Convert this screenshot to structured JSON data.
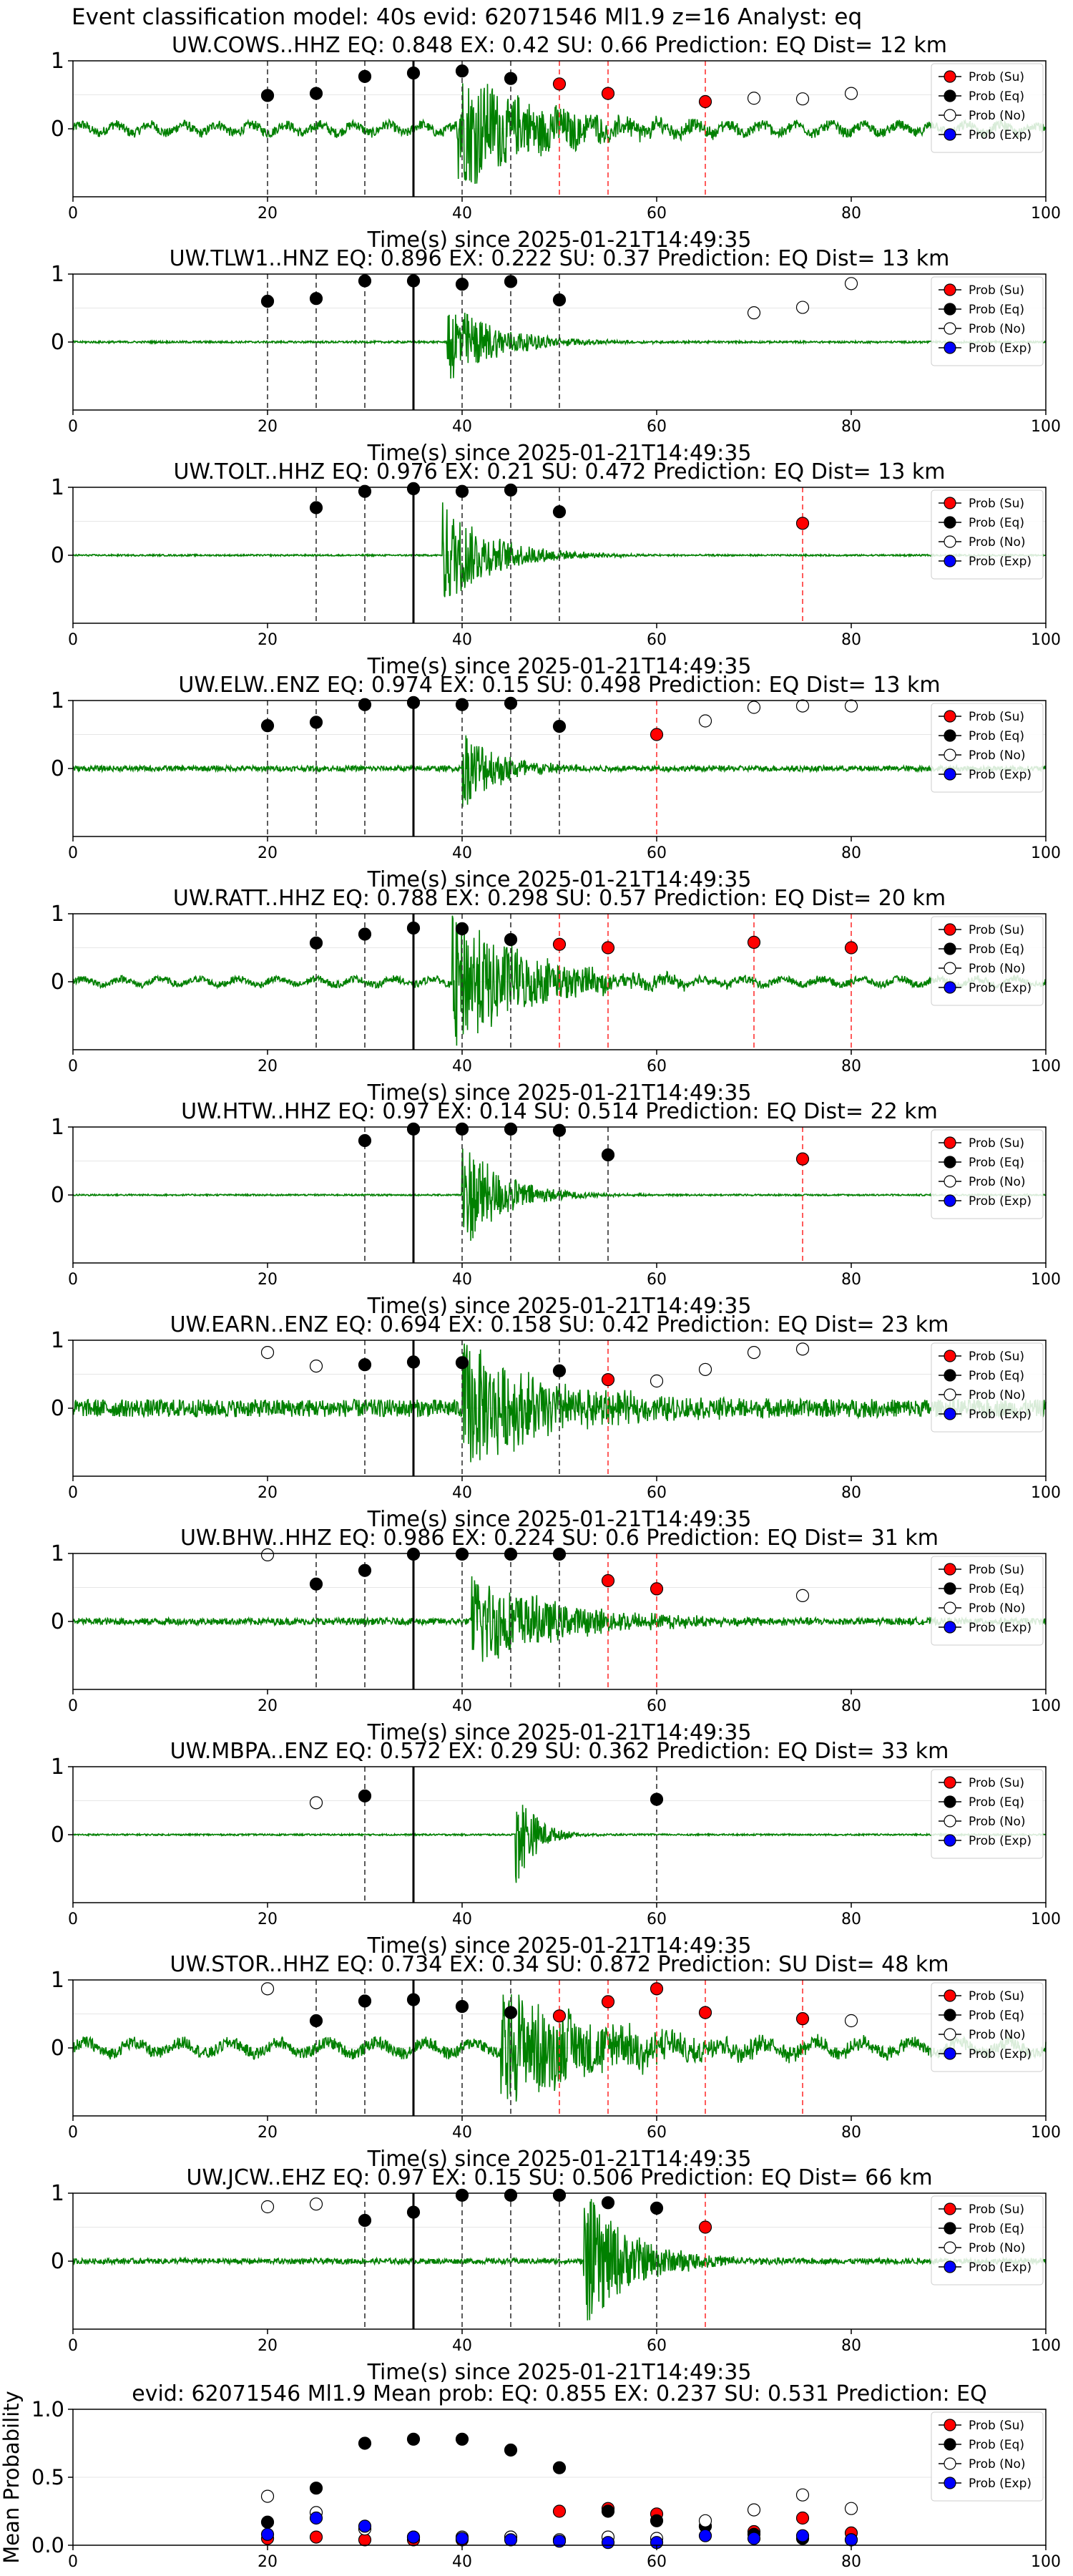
{
  "page": {
    "title": "Event classification model: 40s evid: 62071546 Ml1.9 z=16 Analyst: eq"
  },
  "legend": {
    "entries": [
      "Prob (Su)",
      "Prob (Eq)",
      "Prob (No)",
      "Prob (Exp)"
    ]
  },
  "colors": {
    "waveform": "#008000",
    "su": "#ff0000",
    "eq": "#000000",
    "no": "#ffffff",
    "exp": "#0000ff"
  },
  "chart_data": [
    {
      "type": "scatter",
      "title": "UW.COWS..HHZ   EQ: 0.848  EX: 0.42  SU: 0.66   Prediction: EQ    Dist= 12 km",
      "xlabel": "Time(s) since 2025-01-21T14:49:35",
      "xlim": [
        0,
        100
      ],
      "ylim": [
        -1,
        1
      ],
      "xticks": [
        "0",
        "20",
        "40",
        "60",
        "80",
        "100"
      ],
      "yticks": [
        "1",
        "0"
      ],
      "waveform": {
        "onset": 39.5,
        "envelope": 0.55,
        "decay": 9,
        "noise": 0.07,
        "period": 3.5
      },
      "pick_line": 35,
      "series": [
        {
          "name": "Prob (Su)",
          "x": [
            50,
            55,
            65
          ],
          "y": [
            0.66,
            0.52,
            0.4
          ]
        },
        {
          "name": "Prob (Eq)",
          "x": [
            20,
            25,
            30,
            35,
            40,
            45
          ],
          "y": [
            0.49,
            0.52,
            0.77,
            0.82,
            0.85,
            0.74
          ]
        },
        {
          "name": "Prob (No)",
          "x": [
            70,
            75,
            80
          ],
          "y": [
            0.45,
            0.44,
            0.52
          ]
        },
        {
          "name": "Prob (Exp)",
          "x": [],
          "y": []
        }
      ],
      "vlines_eq": [
        20,
        25,
        30,
        40,
        45
      ],
      "vlines_su": [
        50,
        55,
        65
      ]
    },
    {
      "type": "scatter",
      "title": "UW.TLW1..HNZ   EQ: 0.896  EX: 0.222  SU: 0.37   Prediction: EQ    Dist= 13 km",
      "xlabel": "Time(s) since 2025-01-21T14:49:35",
      "xlim": [
        0,
        100
      ],
      "ylim": [
        -1,
        1
      ],
      "xticks": [
        "0",
        "20",
        "40",
        "60",
        "80",
        "100"
      ],
      "yticks": [
        "1",
        "0"
      ],
      "waveform": {
        "onset": 38.5,
        "envelope": 0.4,
        "decay": 5,
        "noise": 0.015,
        "period": 0
      },
      "pick_line": 35,
      "series": [
        {
          "name": "Prob (Su)",
          "x": [],
          "y": []
        },
        {
          "name": "Prob (Eq)",
          "x": [
            20,
            25,
            30,
            35,
            40,
            45,
            50
          ],
          "y": [
            0.6,
            0.64,
            0.9,
            0.9,
            0.85,
            0.89,
            0.62
          ]
        },
        {
          "name": "Prob (No)",
          "x": [
            70,
            75,
            80
          ],
          "y": [
            0.43,
            0.51,
            0.86
          ]
        },
        {
          "name": "Prob (Exp)",
          "x": [],
          "y": []
        }
      ],
      "vlines_eq": [
        20,
        25,
        30,
        40,
        45,
        50
      ],
      "vlines_su": []
    },
    {
      "type": "scatter",
      "title": "UW.TOLT..HHZ   EQ: 0.976  EX: 0.21  SU: 0.472   Prediction: EQ    Dist= 13 km",
      "xlabel": "Time(s) since 2025-01-21T14:49:35",
      "xlim": [
        0,
        100
      ],
      "ylim": [
        -1,
        1
      ],
      "xticks": [
        "0",
        "20",
        "40",
        "60",
        "80",
        "100"
      ],
      "yticks": [
        "1",
        "0"
      ],
      "waveform": {
        "onset": 38,
        "envelope": 0.5,
        "decay": 5,
        "noise": 0.012,
        "period": 0
      },
      "pick_line": 35,
      "series": [
        {
          "name": "Prob (Su)",
          "x": [
            75
          ],
          "y": [
            0.47
          ]
        },
        {
          "name": "Prob (Eq)",
          "x": [
            25,
            30,
            35,
            40,
            45,
            50
          ],
          "y": [
            0.7,
            0.94,
            0.98,
            0.94,
            0.96,
            0.64
          ]
        },
        {
          "name": "Prob (No)",
          "x": [],
          "y": []
        },
        {
          "name": "Prob (Exp)",
          "x": [],
          "y": []
        }
      ],
      "vlines_eq": [
        25,
        30,
        40,
        45,
        50
      ],
      "vlines_su": [
        75
      ]
    },
    {
      "type": "scatter",
      "title": "UW.ELW..ENZ   EQ: 0.974  EX: 0.15  SU: 0.498   Prediction: EQ    Dist= 13 km",
      "xlabel": "Time(s) since 2025-01-21T14:49:35",
      "xlim": [
        0,
        100
      ],
      "ylim": [
        -1,
        1
      ],
      "xticks": [
        "0",
        "20",
        "40",
        "60",
        "80",
        "100"
      ],
      "yticks": [
        "1",
        "0"
      ],
      "waveform": {
        "onset": 40,
        "envelope": 0.38,
        "decay": 4,
        "noise": 0.04,
        "period": 0
      },
      "pick_line": 35,
      "series": [
        {
          "name": "Prob (Su)",
          "x": [
            60
          ],
          "y": [
            0.5
          ]
        },
        {
          "name": "Prob (Eq)",
          "x": [
            20,
            25,
            30,
            35,
            40,
            45,
            50
          ],
          "y": [
            0.63,
            0.68,
            0.94,
            0.97,
            0.94,
            0.96,
            0.62
          ]
        },
        {
          "name": "Prob (No)",
          "x": [
            65,
            70,
            75,
            80
          ],
          "y": [
            0.7,
            0.9,
            0.92,
            0.92
          ]
        },
        {
          "name": "Prob (Exp)",
          "x": [],
          "y": []
        }
      ],
      "vlines_eq": [
        20,
        25,
        30,
        40,
        45,
        50
      ],
      "vlines_su": [
        60
      ]
    },
    {
      "type": "scatter",
      "title": "UW.RATT..HHZ   EQ: 0.788  EX: 0.298  SU: 0.57   Prediction: EQ    Dist= 20 km",
      "xlabel": "Time(s) since 2025-01-21T14:49:35",
      "xlim": [
        0,
        100
      ],
      "ylim": [
        -1,
        1
      ],
      "xticks": [
        "0",
        "20",
        "40",
        "60",
        "80",
        "100"
      ],
      "yticks": [
        "1",
        "0"
      ],
      "waveform": {
        "onset": 39,
        "envelope": 0.65,
        "decay": 8,
        "noise": 0.05,
        "period": 4
      },
      "pick_line": 35,
      "series": [
        {
          "name": "Prob (Su)",
          "x": [
            50,
            55,
            70,
            80
          ],
          "y": [
            0.55,
            0.5,
            0.58,
            0.5
          ]
        },
        {
          "name": "Prob (Eq)",
          "x": [
            25,
            30,
            35,
            40,
            45
          ],
          "y": [
            0.57,
            0.7,
            0.79,
            0.78,
            0.62
          ]
        },
        {
          "name": "Prob (No)",
          "x": [],
          "y": []
        },
        {
          "name": "Prob (Exp)",
          "x": [],
          "y": []
        }
      ],
      "vlines_eq": [
        25,
        30,
        40,
        45
      ],
      "vlines_su": [
        50,
        55,
        70,
        80
      ]
    },
    {
      "type": "scatter",
      "title": "UW.HTW..HHZ   EQ: 0.97  EX: 0.14  SU: 0.514   Prediction: EQ    Dist= 22 km",
      "xlabel": "Time(s) since 2025-01-21T14:49:35",
      "xlim": [
        0,
        100
      ],
      "ylim": [
        -1,
        1
      ],
      "xticks": [
        "0",
        "20",
        "40",
        "60",
        "80",
        "100"
      ],
      "yticks": [
        "1",
        "0"
      ],
      "waveform": {
        "onset": 40,
        "envelope": 0.55,
        "decay": 4,
        "noise": 0.012,
        "period": 0
      },
      "pick_line": 35,
      "series": [
        {
          "name": "Prob (Su)",
          "x": [
            75
          ],
          "y": [
            0.53
          ]
        },
        {
          "name": "Prob (Eq)",
          "x": [
            30,
            35,
            40,
            45,
            50,
            55
          ],
          "y": [
            0.8,
            0.97,
            0.97,
            0.97,
            0.95,
            0.59
          ]
        },
        {
          "name": "Prob (No)",
          "x": [],
          "y": []
        },
        {
          "name": "Prob (Exp)",
          "x": [],
          "y": []
        }
      ],
      "vlines_eq": [
        30,
        40,
        45,
        50,
        55
      ],
      "vlines_su": [
        75
      ]
    },
    {
      "type": "scatter",
      "title": "UW.EARN..ENZ   EQ: 0.694  EX: 0.158  SU: 0.42   Prediction: EQ    Dist= 23 km",
      "xlabel": "Time(s) since 2025-01-21T14:49:35",
      "xlim": [
        0,
        100
      ],
      "ylim": [
        -1,
        1
      ],
      "xticks": [
        "0",
        "20",
        "40",
        "60",
        "80",
        "100"
      ],
      "yticks": [
        "1",
        "0"
      ],
      "waveform": {
        "onset": 40,
        "envelope": 0.6,
        "decay": 9,
        "noise": 0.13,
        "period": 0
      },
      "pick_line": 35,
      "series": [
        {
          "name": "Prob (Su)",
          "x": [
            55
          ],
          "y": [
            0.42
          ]
        },
        {
          "name": "Prob (Eq)",
          "x": [
            30,
            35,
            40,
            50
          ],
          "y": [
            0.64,
            0.68,
            0.67,
            0.55
          ]
        },
        {
          "name": "Prob (No)",
          "x": [
            20,
            25,
            60,
            65,
            70,
            75
          ],
          "y": [
            0.82,
            0.62,
            0.4,
            0.57,
            0.82,
            0.87
          ]
        },
        {
          "name": "Prob (Exp)",
          "x": [],
          "y": []
        }
      ],
      "vlines_eq": [
        30,
        40,
        50
      ],
      "vlines_su": [
        55
      ]
    },
    {
      "type": "scatter",
      "title": "UW.BHW..HHZ   EQ: 0.986  EX: 0.224  SU: 0.6   Prediction: EQ    Dist= 31 km",
      "xlabel": "Time(s) since 2025-01-21T14:49:35",
      "xlim": [
        0,
        100
      ],
      "ylim": [
        -1,
        1
      ],
      "xticks": [
        "0",
        "20",
        "40",
        "60",
        "80",
        "100"
      ],
      "yticks": [
        "1",
        "0"
      ],
      "waveform": {
        "onset": 41,
        "envelope": 0.45,
        "decay": 9,
        "noise": 0.05,
        "period": 0
      },
      "pick_line": 35,
      "series": [
        {
          "name": "Prob (Su)",
          "x": [
            55,
            60
          ],
          "y": [
            0.6,
            0.48
          ]
        },
        {
          "name": "Prob (Eq)",
          "x": [
            25,
            30,
            35,
            40,
            45,
            50
          ],
          "y": [
            0.55,
            0.75,
            0.99,
            0.99,
            0.99,
            0.99
          ]
        },
        {
          "name": "Prob (No)",
          "x": [
            20,
            75
          ],
          "y": [
            0.98,
            0.38
          ]
        },
        {
          "name": "Prob (Exp)",
          "x": [],
          "y": []
        }
      ],
      "vlines_eq": [
        25,
        30,
        40,
        45,
        50
      ],
      "vlines_su": [
        55,
        60
      ]
    },
    {
      "type": "scatter",
      "title": "UW.MBPA..ENZ   EQ: 0.572  EX: 0.29  SU: 0.362   Prediction: EQ    Dist= 33 km",
      "xlabel": "Time(s) since 2025-01-21T14:49:35",
      "xlim": [
        0,
        100
      ],
      "ylim": [
        -1,
        1
      ],
      "xticks": [
        "0",
        "20",
        "40",
        "60",
        "80",
        "100"
      ],
      "yticks": [
        "1",
        "0"
      ],
      "waveform": {
        "onset": 45.5,
        "envelope": 0.5,
        "decay": 2,
        "noise": 0.012,
        "period": 0
      },
      "pick_line": 35,
      "series": [
        {
          "name": "Prob (Su)",
          "x": [],
          "y": []
        },
        {
          "name": "Prob (Eq)",
          "x": [
            30,
            60
          ],
          "y": [
            0.57,
            0.52
          ]
        },
        {
          "name": "Prob (No)",
          "x": [
            25
          ],
          "y": [
            0.47
          ]
        },
        {
          "name": "Prob (Exp)",
          "x": [],
          "y": []
        }
      ],
      "vlines_eq": [
        30,
        60
      ],
      "vlines_su": []
    },
    {
      "type": "scatter",
      "title": "UW.STOR..HHZ   EQ: 0.734  EX: 0.34  SU: 0.872   Prediction: SU    Dist= 48 km",
      "xlabel": "Time(s) since 2025-01-21T14:49:35",
      "xlim": [
        0,
        100
      ],
      "ylim": [
        -1,
        1
      ],
      "xticks": [
        "0",
        "20",
        "40",
        "60",
        "80",
        "100"
      ],
      "yticks": [
        "1",
        "0"
      ],
      "waveform": {
        "onset": 44,
        "envelope": 0.55,
        "decay": 11,
        "noise": 0.09,
        "period": 5
      },
      "pick_line": 35,
      "series": [
        {
          "name": "Prob (Su)",
          "x": [
            50,
            55,
            60,
            65,
            75
          ],
          "y": [
            0.47,
            0.68,
            0.87,
            0.52,
            0.43
          ]
        },
        {
          "name": "Prob (Eq)",
          "x": [
            25,
            30,
            35,
            40,
            45
          ],
          "y": [
            0.4,
            0.69,
            0.71,
            0.61,
            0.52
          ]
        },
        {
          "name": "Prob (No)",
          "x": [
            20,
            80
          ],
          "y": [
            0.87,
            0.4
          ]
        },
        {
          "name": "Prob (Exp)",
          "x": [],
          "y": []
        }
      ],
      "vlines_eq": [
        25,
        30,
        40,
        45
      ],
      "vlines_su": [
        50,
        55,
        60,
        65,
        75
      ]
    },
    {
      "type": "scatter",
      "title": "UW.JCW..EHZ   EQ: 0.97  EX: 0.15  SU: 0.506   Prediction: EQ    Dist= 66 km",
      "xlabel": "Time(s) since 2025-01-21T14:49:35",
      "xlim": [
        0,
        100
      ],
      "ylim": [
        -1,
        1
      ],
      "xticks": [
        "0",
        "20",
        "40",
        "60",
        "80",
        "100"
      ],
      "yticks": [
        "1",
        "0"
      ],
      "waveform": {
        "onset": 52.5,
        "envelope": 0.65,
        "decay": 5,
        "noise": 0.04,
        "period": 0
      },
      "pick_line": 35,
      "series": [
        {
          "name": "Prob (Su)",
          "x": [
            65
          ],
          "y": [
            0.5
          ]
        },
        {
          "name": "Prob (Eq)",
          "x": [
            30,
            35,
            40,
            45,
            50,
            55,
            60
          ],
          "y": [
            0.6,
            0.72,
            0.97,
            0.97,
            0.97,
            0.86,
            0.78
          ]
        },
        {
          "name": "Prob (No)",
          "x": [
            20,
            25
          ],
          "y": [
            0.8,
            0.84
          ]
        },
        {
          "name": "Prob (Exp)",
          "x": [],
          "y": []
        }
      ],
      "vlines_eq": [
        30,
        40,
        45,
        50,
        60
      ],
      "vlines_su": [
        65
      ]
    },
    {
      "type": "scatter",
      "title": "evid: 62071546  Ml1.9   Mean prob:   EQ: 0.855  EX: 0.237  SU: 0.531   Prediction: EQ",
      "xlabel": "",
      "ylabel": "Mean Probability",
      "xlim": [
        0,
        100
      ],
      "ylim": [
        0,
        1
      ],
      "xticks": [
        "0",
        "20",
        "40",
        "60",
        "80",
        "100"
      ],
      "yticks": [
        "0.0",
        "0.5",
        "1.0"
      ],
      "series": [
        {
          "name": "Prob (Su)",
          "x": [
            20,
            25,
            30,
            35,
            40,
            45,
            50,
            55,
            60,
            65,
            70,
            75,
            80
          ],
          "y": [
            0.05,
            0.06,
            0.04,
            0.04,
            0.04,
            0.06,
            0.25,
            0.27,
            0.23,
            0.14,
            0.1,
            0.2,
            0.09
          ]
        },
        {
          "name": "Prob (Eq)",
          "x": [
            20,
            25,
            30,
            35,
            40,
            45,
            50,
            55,
            60,
            65,
            70,
            75,
            80
          ],
          "y": [
            0.17,
            0.42,
            0.75,
            0.78,
            0.78,
            0.7,
            0.57,
            0.25,
            0.18,
            0.14,
            0.08,
            0.05,
            0.04
          ]
        },
        {
          "name": "Prob (No)",
          "x": [
            20,
            25,
            30,
            35,
            40,
            45,
            50,
            55,
            60,
            65,
            70,
            75,
            80
          ],
          "y": [
            0.36,
            0.24,
            0.12,
            0.06,
            0.06,
            0.06,
            0.04,
            0.06,
            0.05,
            0.18,
            0.26,
            0.37,
            0.27
          ]
        },
        {
          "name": "Prob (Exp)",
          "x": [
            20,
            25,
            30,
            35,
            40,
            45,
            50,
            55,
            60,
            65,
            70,
            75,
            80
          ],
          "y": [
            0.08,
            0.2,
            0.14,
            0.06,
            0.05,
            0.04,
            0.03,
            0.02,
            0.02,
            0.07,
            0.05,
            0.07,
            0.04
          ]
        }
      ]
    }
  ]
}
